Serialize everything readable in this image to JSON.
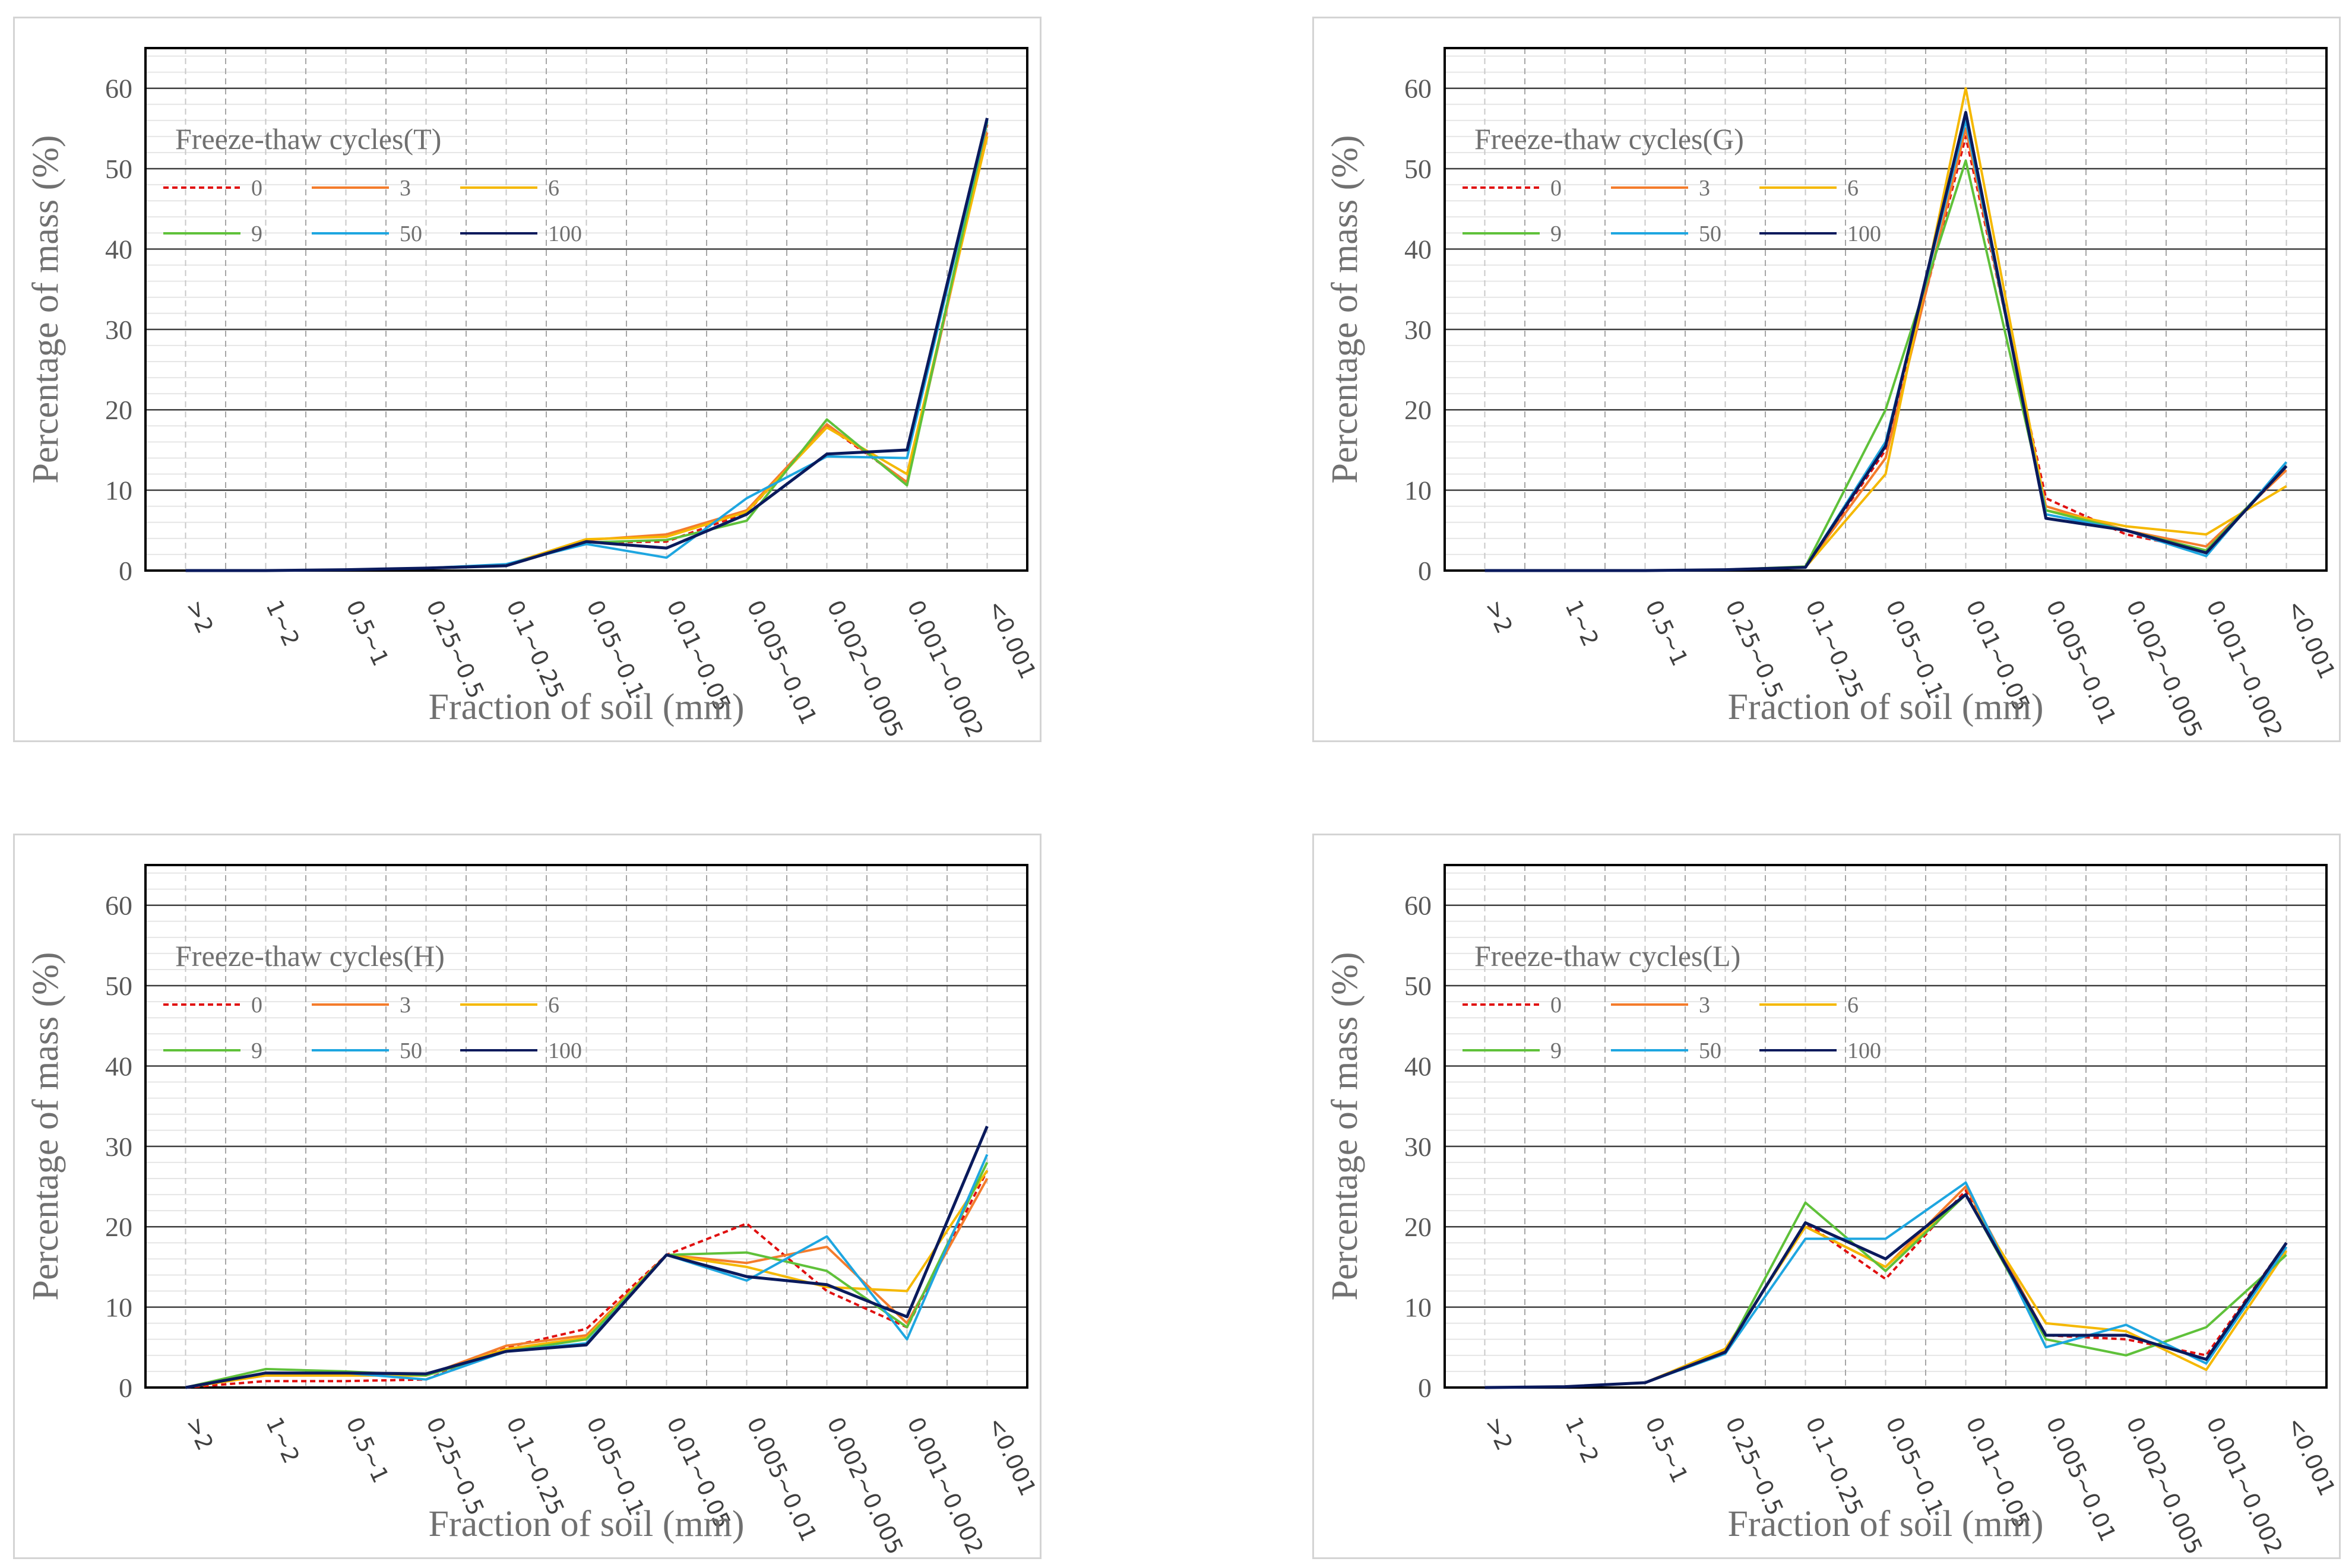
{
  "colors": {
    "s0": "#e01010",
    "s3": "#f47c2c",
    "s6": "#f5b800",
    "s9": "#5fc13a",
    "s50": "#1ea6e0",
    "s100": "#0a1a5c"
  },
  "chart_data": [
    {
      "type": "line",
      "title": "Freeze-thaw cycles(T)",
      "xlabel": "Fraction of soil (mm)",
      "ylabel": "Percentage of mass (%)",
      "ylim": [
        0,
        65
      ],
      "yticks": [
        0,
        10,
        20,
        30,
        40,
        50,
        60
      ],
      "categories": [
        ">2",
        "1~2",
        "0.5~1",
        "0.25~0.5",
        "0.1~0.25",
        "0.05~0.1",
        "0.01~0.05",
        "0.005~0.01",
        "0.002~0.005",
        "0.001~0.002",
        "<0.001"
      ],
      "legend_position": "top-left",
      "series": [
        {
          "name": "0",
          "color_key": "s0",
          "dashed": true,
          "values": [
            0,
            0,
            0.1,
            0.3,
            0.6,
            3.5,
            3.6,
            7.2,
            18.0,
            11.0,
            55.5
          ]
        },
        {
          "name": "3",
          "color_key": "s3",
          "dashed": false,
          "values": [
            0,
            0,
            0.1,
            0.3,
            0.7,
            3.8,
            4.5,
            7.5,
            18.2,
            11.0,
            54.5
          ]
        },
        {
          "name": "6",
          "color_key": "s6",
          "dashed": false,
          "values": [
            0,
            0,
            0.1,
            0.3,
            0.7,
            3.9,
            4.2,
            7.3,
            17.8,
            12.0,
            54.0
          ]
        },
        {
          "name": "9",
          "color_key": "s9",
          "dashed": false,
          "values": [
            0,
            0,
            0.1,
            0.3,
            0.6,
            3.5,
            3.8,
            6.2,
            18.8,
            10.6,
            55.8
          ]
        },
        {
          "name": "50",
          "color_key": "s50",
          "dashed": false,
          "values": [
            0,
            0,
            0.1,
            0.3,
            0.8,
            3.3,
            1.6,
            9.0,
            14.2,
            14.0,
            56.0
          ]
        },
        {
          "name": "100",
          "color_key": "s100",
          "dashed": false,
          "values": [
            0,
            0,
            0.1,
            0.3,
            0.6,
            3.6,
            2.8,
            7.0,
            14.5,
            15.0,
            56.3
          ]
        }
      ]
    },
    {
      "type": "line",
      "title": "Freeze-thaw cycles(G)",
      "xlabel": "Fraction of soil (mm)",
      "ylabel": "Percentage of mass (%)",
      "ylim": [
        0,
        65
      ],
      "yticks": [
        0,
        10,
        20,
        30,
        40,
        50,
        60
      ],
      "categories": [
        ">2",
        "1~2",
        "0.5~1",
        "0.25~0.5",
        "0.1~0.25",
        "0.05~0.1",
        "0.01~0.05",
        "0.005~0.01",
        "0.002~0.005",
        "0.001~0.002",
        "<0.001"
      ],
      "legend_position": "top-left",
      "series": [
        {
          "name": "0",
          "color_key": "s0",
          "dashed": true,
          "values": [
            0,
            0,
            0,
            0.1,
            0.4,
            15.0,
            54.0,
            9.0,
            4.5,
            2.5,
            13.0
          ]
        },
        {
          "name": "3",
          "color_key": "s3",
          "dashed": false,
          "values": [
            0,
            0,
            0,
            0.1,
            0.4,
            14.0,
            55.0,
            8.0,
            5.0,
            3.0,
            12.5
          ]
        },
        {
          "name": "6",
          "color_key": "s6",
          "dashed": false,
          "values": [
            0,
            0,
            0,
            0.1,
            0.4,
            12.0,
            60.0,
            7.5,
            5.5,
            4.5,
            10.5
          ]
        },
        {
          "name": "9",
          "color_key": "s9",
          "dashed": false,
          "values": [
            0,
            0,
            0,
            0.1,
            0.5,
            20.0,
            51.0,
            7.5,
            5.0,
            2.5,
            13.0
          ]
        },
        {
          "name": "50",
          "color_key": "s50",
          "dashed": false,
          "values": [
            0,
            0,
            0,
            0.1,
            0.4,
            16.0,
            56.0,
            7.0,
            5.0,
            1.8,
            13.5
          ]
        },
        {
          "name": "100",
          "color_key": "s100",
          "dashed": false,
          "values": [
            0,
            0,
            0,
            0.1,
            0.4,
            15.5,
            57.0,
            6.5,
            5.0,
            2.2,
            13.0
          ]
        }
      ]
    },
    {
      "type": "line",
      "title": "Freeze-thaw cycles(H)",
      "xlabel": "Fraction of soil (mm)",
      "ylabel": "Percentage of mass (%)",
      "ylim": [
        0,
        65
      ],
      "yticks": [
        0,
        10,
        20,
        30,
        40,
        50,
        60
      ],
      "categories": [
        ">2",
        "1~2",
        "0.5~1",
        "0.25~0.5",
        "0.1~0.25",
        "0.05~0.1",
        "0.01~0.05",
        "0.005~0.01",
        "0.002~0.005",
        "0.001~0.002",
        "<0.001"
      ],
      "legend_position": "top-left",
      "series": [
        {
          "name": "0",
          "color_key": "s0",
          "dashed": true,
          "values": [
            0,
            0.8,
            0.8,
            1.0,
            5.0,
            7.3,
            16.5,
            20.4,
            12.0,
            7.5,
            27.0
          ]
        },
        {
          "name": "3",
          "color_key": "s3",
          "dashed": false,
          "values": [
            0,
            1.5,
            1.5,
            1.5,
            5.2,
            6.5,
            16.5,
            15.5,
            17.5,
            8.0,
            26.0
          ]
        },
        {
          "name": "6",
          "color_key": "s6",
          "dashed": false,
          "values": [
            0,
            1.5,
            1.5,
            1.5,
            4.8,
            6.2,
            16.5,
            15.0,
            12.5,
            12.0,
            27.0
          ]
        },
        {
          "name": "9",
          "color_key": "s9",
          "dashed": false,
          "values": [
            0,
            2.3,
            2.0,
            1.5,
            4.5,
            6.0,
            16.5,
            16.8,
            14.5,
            7.5,
            28.0
          ]
        },
        {
          "name": "50",
          "color_key": "s50",
          "dashed": false,
          "values": [
            0,
            1.8,
            1.8,
            1.0,
            4.5,
            5.5,
            16.5,
            13.3,
            18.8,
            6.0,
            29.0
          ]
        },
        {
          "name": "100",
          "color_key": "s100",
          "dashed": false,
          "values": [
            0,
            1.8,
            1.8,
            1.7,
            4.5,
            5.3,
            16.5,
            13.8,
            12.8,
            8.8,
            32.5
          ]
        }
      ]
    },
    {
      "type": "line",
      "title": "Freeze-thaw cycles(L)",
      "xlabel": "Fraction of soil (mm)",
      "ylabel": "Percentage of mass (%)",
      "ylim": [
        0,
        65
      ],
      "yticks": [
        0,
        10,
        20,
        30,
        40,
        50,
        60
      ],
      "categories": [
        ">2",
        "1~2",
        "0.5~1",
        "0.25~0.5",
        "0.1~0.25",
        "0.05~0.1",
        "0.01~0.05",
        "0.005~0.01",
        "0.002~0.005",
        "0.001~0.002",
        "<0.001"
      ],
      "legend_position": "top-left",
      "series": [
        {
          "name": "0",
          "color_key": "s0",
          "dashed": true,
          "values": [
            0,
            0.1,
            0.6,
            4.5,
            20.5,
            13.5,
            24.5,
            6.5,
            6.0,
            4.0,
            18.0
          ]
        },
        {
          "name": "3",
          "color_key": "s3",
          "dashed": false,
          "values": [
            0,
            0.1,
            0.6,
            4.8,
            20.0,
            15.0,
            25.0,
            6.5,
            6.5,
            3.5,
            17.5
          ]
        },
        {
          "name": "6",
          "color_key": "s6",
          "dashed": false,
          "values": [
            0,
            0.1,
            0.6,
            4.8,
            20.0,
            15.0,
            24.0,
            8.0,
            7.0,
            2.2,
            17.0
          ]
        },
        {
          "name": "9",
          "color_key": "s9",
          "dashed": false,
          "values": [
            0,
            0.1,
            0.6,
            4.3,
            23.0,
            14.5,
            24.0,
            6.0,
            4.0,
            7.5,
            16.5
          ]
        },
        {
          "name": "50",
          "color_key": "s50",
          "dashed": false,
          "values": [
            0,
            0.1,
            0.6,
            4.2,
            18.5,
            18.5,
            25.5,
            5.0,
            7.8,
            3.0,
            17.5
          ]
        },
        {
          "name": "100",
          "color_key": "s100",
          "dashed": false,
          "values": [
            0,
            0.1,
            0.6,
            4.4,
            20.5,
            16.0,
            24.0,
            6.5,
            6.5,
            3.5,
            18.0
          ]
        }
      ]
    }
  ]
}
